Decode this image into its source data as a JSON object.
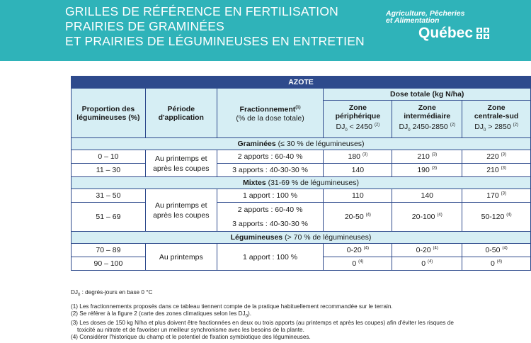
{
  "header": {
    "title_lines": [
      "GRILLES DE RÉFÉRENCE EN FERTILISATION",
      "PRAIRIES DE GRAMINÉES",
      "ET PRAIRIES DE LÉGUMINEUSES EN ENTRETIEN"
    ],
    "ministry_line1": "Agriculture, Pêcheries",
    "ministry_line2": "et Alimentation",
    "province": "Québec"
  },
  "table": {
    "title": "AZOTE",
    "col_proportion": "Proportion des légumineuses (%)",
    "col_periode": "Période d'application",
    "col_fraction": "Fractionnement",
    "col_fraction_note": "(1)",
    "col_fraction_sub": "(% de la dose totale)",
    "col_dose": "Dose totale (kg N/ha)",
    "zone1_line1": "Zone",
    "zone1_line2": "périphérique",
    "zone1_line3": "DJ",
    "zone1_dj": "< 2450",
    "zone2_line1": "Zone",
    "zone2_line2": "intermédiaire",
    "zone2_dj": "2450-2850",
    "zone3_line1": "Zone",
    "zone3_line2": "centrale-sud",
    "zone3_dj": "> 2850",
    "dj_sub": "0",
    "note2": "(2)",
    "sec1_title": "Graminées",
    "sec1_pct": "(≤ 30 % de légumineuses)",
    "sec2_title": "Mixtes",
    "sec2_pct": "(31-69 % de légumineuses)",
    "sec3_title": "Légumineuses",
    "sec3_pct": "(> 70 % de légumineuses)",
    "periode_printemps_coupes": "Au printemps et après les coupes",
    "periode_printemps": "Au printemps",
    "rows": {
      "g1": {
        "prop": "0 – 10",
        "frac": "2 apports : 60-40 %",
        "z1": "180",
        "z1n": "(3)",
        "z2": "210",
        "z2n": "(3)",
        "z3": "220",
        "z3n": "(3)"
      },
      "g2": {
        "prop": "11 – 30",
        "frac": "3 apports : 40-30-30 %",
        "z1": "140",
        "z2": "190",
        "z2n": "(3)",
        "z3": "210",
        "z3n": "(3)"
      },
      "m1": {
        "prop": "31 – 50",
        "frac": "1 apport : 100 %",
        "z1": "110",
        "z2": "140",
        "z3": "170",
        "z3n": "(3)"
      },
      "m2": {
        "prop": "51 – 69",
        "frac_a": "2 apports : 60-40 %",
        "frac_b": "3 apports : 40-30-30 %",
        "z1": "20-50",
        "z1n": "(4)",
        "z2": "20-100",
        "z2n": "(4)",
        "z3": "50-120",
        "z3n": "(4)"
      },
      "l1": {
        "prop": "70 – 89",
        "frac": "1 apport : 100 %",
        "z1": "0-20",
        "z1n": "(4)",
        "z2": "0-20",
        "z2n": "(4)",
        "z3": "0-50",
        "z3n": "(4)"
      },
      "l2": {
        "prop": "90 – 100",
        "z1": "0",
        "z1n": "(4)",
        "z2": "0",
        "z2n": "(4)",
        "z3": "0",
        "z3n": "(4)"
      }
    }
  },
  "notes": {
    "dj": "DJ",
    "dj_sub": "0",
    "dj_text": " : degrés-jours en base 0 °C",
    "n1": "(1) Les fractionnements proposés dans ce tableau tiennent compte de la pratique habituellement recommandée sur le terrain.",
    "n2a": "(2) Se référer à la figure 2 (carte des zones climatiques selon les DJ",
    "n2b": ").",
    "n3a": "(3) Les doses de 150 kg N/ha et plus doivent être fractionnées en deux ou trois apports (au printemps et après les coupes) afin d'éviter les risques de",
    "n3b": "toxicité au nitrate et de favoriser un meilleur synchronisme avec les besoins de la plante.",
    "n4": "(4) Considérer l'historique du champ et le potentiel de fixation symbiotique des légumineuses."
  }
}
